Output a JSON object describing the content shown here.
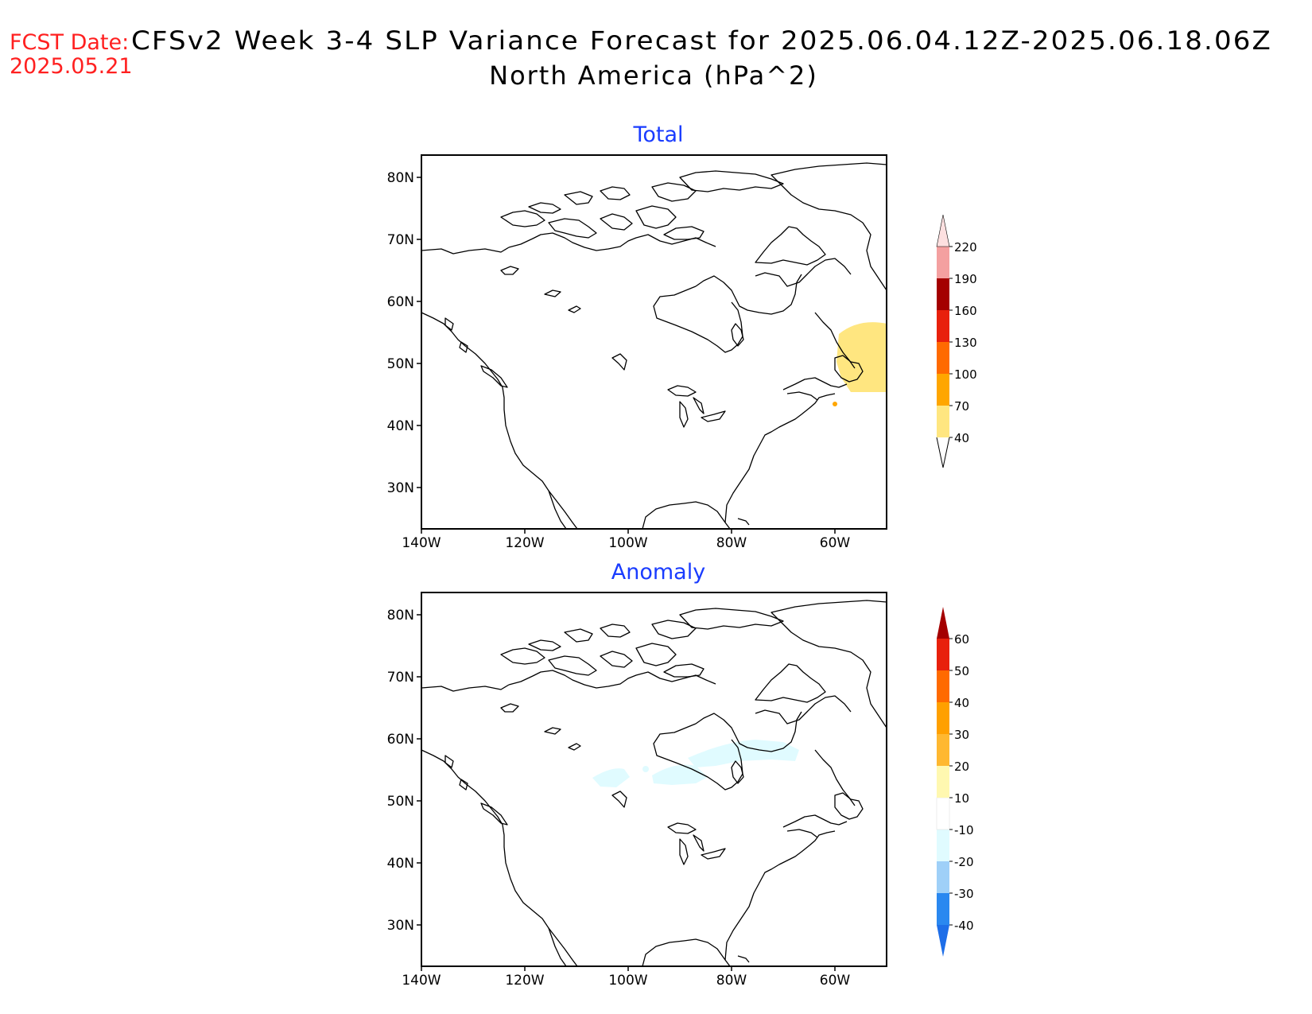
{
  "header": {
    "fcst_label": "FCST Date:",
    "fcst_date": "2025.05.21",
    "title_line1": "CFSv2 Week 3-4 SLP Variance Forecast for 2025.06.04.12Z-2025.06.18.06Z",
    "title_line2": "North America (hPa^2)"
  },
  "colors": {
    "fcst_text": "#ff2020",
    "panel_title": "#1a3cff",
    "coast": "#000000"
  },
  "panels": [
    {
      "title": "Total",
      "lat_ticks": [
        "30N",
        "40N",
        "50N",
        "60N",
        "70N",
        "80N"
      ],
      "lon_ticks": [
        "140W",
        "120W",
        "100W",
        "80W",
        "60W"
      ],
      "colorbar": {
        "labels": [
          "40",
          "70",
          "100",
          "130",
          "160",
          "190",
          "220"
        ],
        "colors": [
          "#ffe680",
          "#ffa600",
          "#ff6a00",
          "#e8200c",
          "#a40000",
          "#f4a0a0",
          "#fde0e0"
        ],
        "lower_extend": "open",
        "upper_color": "#fff0f0"
      },
      "shading": [
        {
          "level": "40-70",
          "color": "#ffe680",
          "region": "Newfoundland / Labrador Sea"
        }
      ]
    },
    {
      "title": "Anomaly",
      "lat_ticks": [
        "30N",
        "40N",
        "50N",
        "60N",
        "70N",
        "80N"
      ],
      "lon_ticks": [
        "140W",
        "120W",
        "100W",
        "80W",
        "60W"
      ],
      "colorbar": {
        "labels": [
          "-40",
          "-30",
          "-20",
          "-10",
          "10",
          "20",
          "30",
          "40",
          "50",
          "60"
        ],
        "colors": [
          "#1e6ee8",
          "#2a88f0",
          "#9fd0f8",
          "#e0fbff",
          "#ffffff",
          "#fff8b0",
          "#ffb830",
          "#ffa000",
          "#ff6a00",
          "#e8200c",
          "#a40000"
        ],
        "lower_color": "#1e6ee8",
        "upper_color": "#a40000"
      },
      "shading": [
        {
          "level": "-20 to -10",
          "color": "#e0fbff",
          "region": "Hudson Bay and central Canada"
        }
      ]
    }
  ]
}
